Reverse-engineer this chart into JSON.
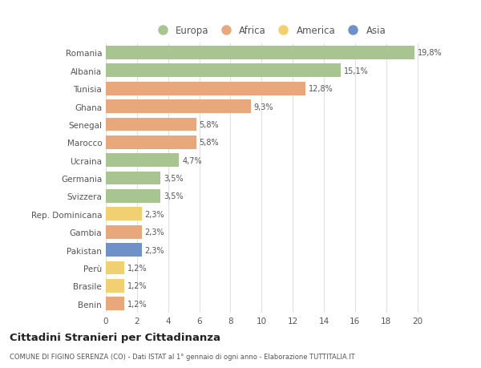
{
  "categories": [
    "Romania",
    "Albania",
    "Tunisia",
    "Ghana",
    "Senegal",
    "Marocco",
    "Ucraina",
    "Germania",
    "Svizzera",
    "Rep. Dominicana",
    "Gambia",
    "Pakistan",
    "Perù",
    "Brasile",
    "Benin"
  ],
  "values": [
    19.8,
    15.1,
    12.8,
    9.3,
    5.8,
    5.8,
    4.7,
    3.5,
    3.5,
    2.3,
    2.3,
    2.3,
    1.2,
    1.2,
    1.2
  ],
  "labels": [
    "19,8%",
    "15,1%",
    "12,8%",
    "9,3%",
    "5,8%",
    "5,8%",
    "4,7%",
    "3,5%",
    "3,5%",
    "2,3%",
    "2,3%",
    "2,3%",
    "1,2%",
    "1,2%",
    "1,2%"
  ],
  "colors": [
    "#a8c490",
    "#a8c490",
    "#e8a87c",
    "#e8a87c",
    "#e8a87c",
    "#e8a87c",
    "#a8c490",
    "#a8c490",
    "#a8c490",
    "#f0d070",
    "#e8a87c",
    "#7090c8",
    "#f0d070",
    "#f0d070",
    "#e8a87c"
  ],
  "legend": {
    "Europa": "#a8c490",
    "Africa": "#e8a87c",
    "America": "#f0d070",
    "Asia": "#7090c8"
  },
  "xlim": [
    0,
    21
  ],
  "xticks": [
    0,
    2,
    4,
    6,
    8,
    10,
    12,
    14,
    16,
    18,
    20
  ],
  "title": "Cittadini Stranieri per Cittadinanza",
  "subtitle": "COMUNE DI FIGINO SERENZA (CO) - Dati ISTAT al 1° gennaio di ogni anno - Elaborazione TUTTITALIA.IT",
  "background_color": "#ffffff",
  "grid_color": "#e0e0e0",
  "bar_height": 0.75
}
